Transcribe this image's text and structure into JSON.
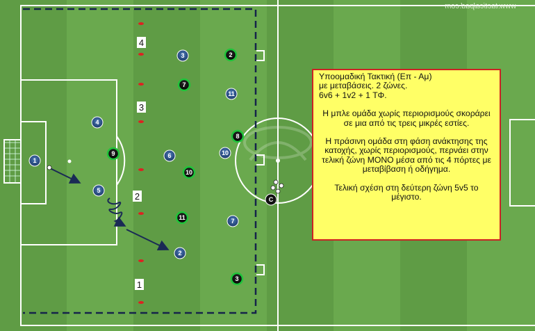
{
  "watermark": "www.tacticalpad.com",
  "note": {
    "title_line1": "Υποομαδική Τακτική (Επ - Αμ)",
    "title_line2": "με μεταβάσεις. 2 ζώνες.",
    "title_line3": "6v6 + 1v2 + 1 ΤΦ.",
    "para1": "Η μπλε ομάδα χωρίς περιορισμούς σκοράρει σε μια από τις τρεις μικρές εστίες.",
    "para2": "Η πράσινη ομάδα στη φάση ανάκτησης της κατοχής, χωρίς περιορισμούς, περνάει στην τελική ζώνη ΜΟΝΟ μέσα από τις 4 πόρτες με μεταβίβαση ή οδήγημα.",
    "para3": "Τελική σχέση στη δεύτερη ζώνη 5v5 το μέγιστο."
  },
  "gate_labels": [
    "4",
    "3",
    "2",
    "1"
  ],
  "blue_players": [
    "1",
    "4",
    "5",
    "3",
    "6",
    "2",
    "11",
    "10",
    "7"
  ],
  "green_players": [
    "9",
    "2",
    "7",
    "8",
    "10",
    "11",
    "3"
  ],
  "coach_label": "C",
  "colors": {
    "grass_light": "#6aa94e",
    "grass_dark": "#5f9c45",
    "blue_team": "#2a4f86",
    "green_team": "#1fc43a",
    "arrow": "#1a2a55",
    "note_bg": "#ffff66",
    "note_border": "#cc2222"
  }
}
